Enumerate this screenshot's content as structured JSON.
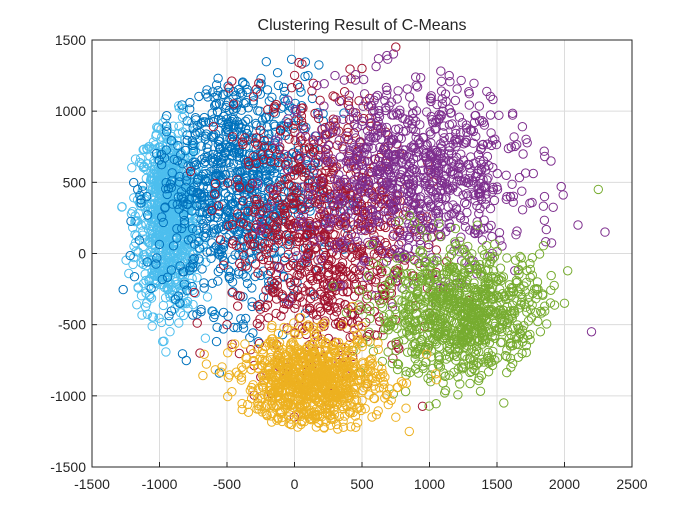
{
  "chart_data": {
    "type": "scatter",
    "title": "Clustering Result of C-Means",
    "xlabel": "",
    "ylabel": "",
    "xlim": [
      -1500,
      2500
    ],
    "ylim": [
      -1500,
      1500
    ],
    "x_ticks": [
      "-1500",
      "-1000",
      "-500",
      "0",
      "500",
      "1000",
      "1500",
      "2000",
      "2500"
    ],
    "y_ticks": [
      "-1500",
      "-1000",
      "-500",
      "0",
      "500",
      "1000",
      "1500"
    ],
    "grid": true,
    "marker": "circle-open",
    "series": [
      {
        "color": "#4DBEEE",
        "center": [
          -930,
          250
        ],
        "spread": [
          120,
          330
        ],
        "points": [
          [
            -1100,
            200
          ],
          [
            -1050,
            450
          ],
          [
            -1000,
            -50
          ],
          [
            -950,
            600
          ],
          [
            -900,
            300
          ],
          [
            -880,
            -200
          ],
          [
            -850,
            700
          ],
          [
            -820,
            100
          ],
          [
            -800,
            500
          ],
          [
            -780,
            -100
          ]
        ]
      },
      {
        "color": "#0072BD",
        "center": [
          -420,
          480
        ],
        "spread": [
          300,
          420
        ],
        "points": [
          [
            -850,
            -350
          ],
          [
            -700,
            850
          ],
          [
            -600,
            200
          ],
          [
            -450,
            1000
          ],
          [
            -400,
            -300
          ],
          [
            -300,
            600
          ],
          [
            -200,
            1150
          ],
          [
            -150,
            200
          ],
          [
            0,
            900
          ],
          [
            100,
            1250
          ]
        ]
      },
      {
        "color": "#A2142F",
        "center": [
          200,
          150
        ],
        "spread": [
          330,
          480
        ],
        "points": [
          [
            -700,
            -700
          ],
          [
            -500,
            -500
          ],
          [
            -300,
            50
          ],
          [
            0,
            550
          ],
          [
            150,
            -300
          ],
          [
            300,
            1100
          ],
          [
            500,
            1300
          ],
          [
            750,
            1450
          ],
          [
            600,
            -200
          ],
          [
            400,
            800
          ]
        ]
      },
      {
        "color": "#7E2F8E",
        "center": [
          900,
          550
        ],
        "spread": [
          420,
          330
        ],
        "points": [
          [
            300,
            1250
          ],
          [
            500,
            900
          ],
          [
            800,
            700
          ],
          [
            1100,
            1000
          ],
          [
            1300,
            600
          ],
          [
            1600,
            400
          ],
          [
            1900,
            650
          ],
          [
            2100,
            200
          ],
          [
            2300,
            150
          ],
          [
            2200,
            -550
          ]
        ]
      },
      {
        "color": "#77AC30",
        "center": [
          1250,
          -430
        ],
        "spread": [
          320,
          230
        ],
        "points": [
          [
            700,
            -200
          ],
          [
            900,
            -700
          ],
          [
            1100,
            -300
          ],
          [
            1250,
            -800
          ],
          [
            1400,
            -450
          ],
          [
            1600,
            -650
          ],
          [
            1800,
            -200
          ],
          [
            2000,
            -350
          ],
          [
            2250,
            450
          ],
          [
            1550,
            -1050
          ]
        ]
      },
      {
        "color": "#EDB120",
        "center": [
          120,
          -900
        ],
        "spread": [
          260,
          160
        ],
        "points": [
          [
            -200,
            -800
          ],
          [
            -100,
            -1050
          ],
          [
            0,
            -900
          ],
          [
            150,
            -1150
          ],
          [
            300,
            -700
          ],
          [
            400,
            -1000
          ],
          [
            600,
            -900
          ],
          [
            750,
            -1150
          ],
          [
            850,
            -1250
          ],
          [
            200,
            -600
          ]
        ]
      }
    ]
  }
}
